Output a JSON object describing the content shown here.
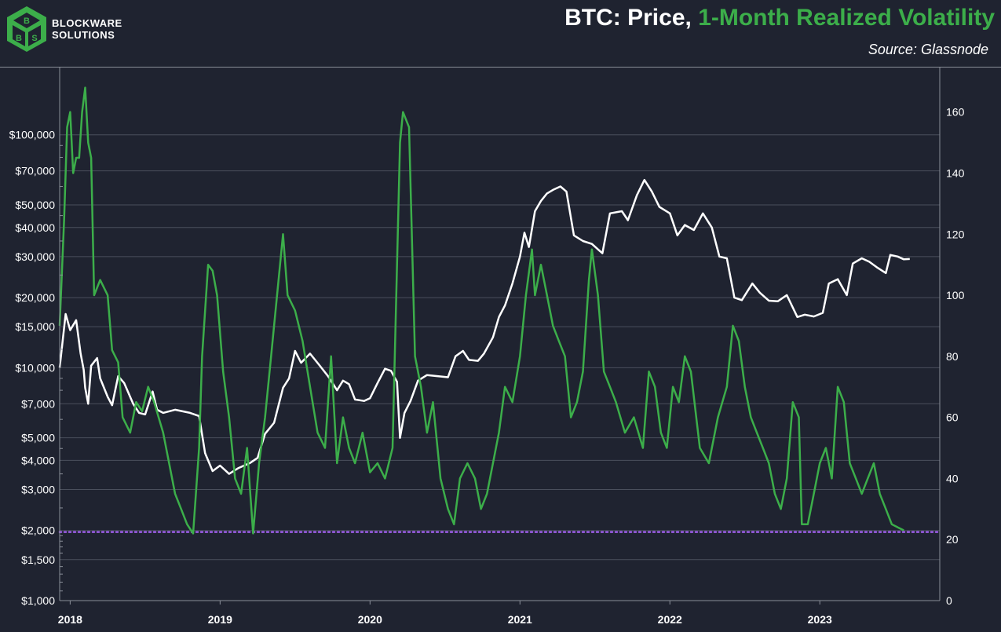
{
  "brand": {
    "line1": "BLOCKWARE",
    "line2": "SOLUTIONS"
  },
  "header": {
    "title_prefix": "BTC: Price, ",
    "title_highlight": "1-Month Realized Volatility",
    "source": "Source: Glassnode"
  },
  "colors": {
    "background": "#1f2330",
    "price": "#ffffff",
    "volatility": "#3cae4a",
    "reference": "#9b5de5",
    "grid": "#4a4f5c"
  },
  "chart_data": {
    "type": "line",
    "xlim": [
      2017.93,
      2023.8
    ],
    "x_ticks": [
      {
        "v": 2018,
        "label": "2018"
      },
      {
        "v": 2019,
        "label": "2019"
      },
      {
        "v": 2020,
        "label": "2020"
      },
      {
        "v": 2021,
        "label": "2021"
      },
      {
        "v": 2022,
        "label": "2022"
      },
      {
        "v": 2023,
        "label": "2023"
      }
    ],
    "left_axis": {
      "scale": "log",
      "ylim": [
        1000,
        180000
      ],
      "ticks": [
        {
          "v": 100000,
          "label": "$100,000"
        },
        {
          "v": 70000,
          "label": "$70,000"
        },
        {
          "v": 50000,
          "label": "$50,000"
        },
        {
          "v": 40000,
          "label": "$40,000"
        },
        {
          "v": 30000,
          "label": "$30,000"
        },
        {
          "v": 20000,
          "label": "$20,000"
        },
        {
          "v": 15000,
          "label": "$15,000"
        },
        {
          "v": 10000,
          "label": "$10,000"
        },
        {
          "v": 7000,
          "label": "$7,000"
        },
        {
          "v": 5000,
          "label": "$5,000"
        },
        {
          "v": 4000,
          "label": "$4,000"
        },
        {
          "v": 3000,
          "label": "$3,000"
        },
        {
          "v": 2000,
          "label": "$2,000"
        },
        {
          "v": 1500,
          "label": "$1,500"
        },
        {
          "v": 1000,
          "label": "$1,000"
        }
      ]
    },
    "right_axis": {
      "scale": "linear",
      "ylim": [
        0,
        172
      ],
      "ticks": [
        {
          "v": 0,
          "label": "0"
        },
        {
          "v": 20,
          "label": "20"
        },
        {
          "v": 40,
          "label": "40"
        },
        {
          "v": 60,
          "label": "60"
        },
        {
          "v": 80,
          "label": "80"
        },
        {
          "v": 100,
          "label": "100"
        },
        {
          "v": 120,
          "label": "120"
        },
        {
          "v": 140,
          "label": "140"
        },
        {
          "v": 160,
          "label": "160"
        }
      ]
    },
    "reference_line": {
      "axis": "left",
      "value": 1970
    },
    "series": [
      {
        "key": "price",
        "axis": "left",
        "points": [
          [
            2017.93,
            10000
          ],
          [
            2017.97,
            17000
          ],
          [
            2018.0,
            14500
          ],
          [
            2018.04,
            16000
          ],
          [
            2018.07,
            11500
          ],
          [
            2018.09,
            9800
          ],
          [
            2018.1,
            8200
          ],
          [
            2018.12,
            7000
          ],
          [
            2018.14,
            10200
          ],
          [
            2018.18,
            11000
          ],
          [
            2018.2,
            9000
          ],
          [
            2018.25,
            7500
          ],
          [
            2018.28,
            6900
          ],
          [
            2018.32,
            9200
          ],
          [
            2018.36,
            8600
          ],
          [
            2018.42,
            7000
          ],
          [
            2018.46,
            6400
          ],
          [
            2018.5,
            6300
          ],
          [
            2018.55,
            7900
          ],
          [
            2018.58,
            6600
          ],
          [
            2018.62,
            6400
          ],
          [
            2018.7,
            6600
          ],
          [
            2018.8,
            6400
          ],
          [
            2018.86,
            6200
          ],
          [
            2018.9,
            4300
          ],
          [
            2018.95,
            3600
          ],
          [
            2019.0,
            3800
          ],
          [
            2019.06,
            3500
          ],
          [
            2019.12,
            3700
          ],
          [
            2019.2,
            3900
          ],
          [
            2019.25,
            4100
          ],
          [
            2019.3,
            5200
          ],
          [
            2019.36,
            5800
          ],
          [
            2019.42,
            8200
          ],
          [
            2019.46,
            9000
          ],
          [
            2019.5,
            11800
          ],
          [
            2019.54,
            10500
          ],
          [
            2019.6,
            11500
          ],
          [
            2019.66,
            10300
          ],
          [
            2019.72,
            9200
          ],
          [
            2019.78,
            8000
          ],
          [
            2019.82,
            8800
          ],
          [
            2019.86,
            8500
          ],
          [
            2019.9,
            7300
          ],
          [
            2019.96,
            7200
          ],
          [
            2020.0,
            7400
          ],
          [
            2020.05,
            8600
          ],
          [
            2020.1,
            9900
          ],
          [
            2020.14,
            9700
          ],
          [
            2020.18,
            8700
          ],
          [
            2020.2,
            5000
          ],
          [
            2020.23,
            6400
          ],
          [
            2020.27,
            7200
          ],
          [
            2020.32,
            8800
          ],
          [
            2020.38,
            9300
          ],
          [
            2020.45,
            9200
          ],
          [
            2020.52,
            9100
          ],
          [
            2020.57,
            11200
          ],
          [
            2020.62,
            11800
          ],
          [
            2020.66,
            10800
          ],
          [
            2020.72,
            10700
          ],
          [
            2020.76,
            11500
          ],
          [
            2020.82,
            13500
          ],
          [
            2020.86,
            16500
          ],
          [
            2020.9,
            18500
          ],
          [
            2020.95,
            23000
          ],
          [
            2021.0,
            30000
          ],
          [
            2021.03,
            38000
          ],
          [
            2021.06,
            33000
          ],
          [
            2021.1,
            47000
          ],
          [
            2021.14,
            52000
          ],
          [
            2021.18,
            56000
          ],
          [
            2021.22,
            58000
          ],
          [
            2021.27,
            60000
          ],
          [
            2021.31,
            57000
          ],
          [
            2021.36,
            37000
          ],
          [
            2021.42,
            35000
          ],
          [
            2021.48,
            34000
          ],
          [
            2021.55,
            31000
          ],
          [
            2021.6,
            46000
          ],
          [
            2021.68,
            47000
          ],
          [
            2021.72,
            43000
          ],
          [
            2021.78,
            55000
          ],
          [
            2021.83,
            64000
          ],
          [
            2021.88,
            57000
          ],
          [
            2021.93,
            49000
          ],
          [
            2022.0,
            46000
          ],
          [
            2022.05,
            37000
          ],
          [
            2022.1,
            41000
          ],
          [
            2022.16,
            39000
          ],
          [
            2022.22,
            46000
          ],
          [
            2022.28,
            40000
          ],
          [
            2022.33,
            30000
          ],
          [
            2022.38,
            29500
          ],
          [
            2022.43,
            20000
          ],
          [
            2022.48,
            19500
          ],
          [
            2022.55,
            23000
          ],
          [
            2022.6,
            21000
          ],
          [
            2022.66,
            19400
          ],
          [
            2022.72,
            19300
          ],
          [
            2022.78,
            20500
          ],
          [
            2022.85,
            16500
          ],
          [
            2022.9,
            16900
          ],
          [
            2022.96,
            16600
          ],
          [
            2023.02,
            17200
          ],
          [
            2023.06,
            23000
          ],
          [
            2023.12,
            24000
          ],
          [
            2023.18,
            20500
          ],
          [
            2023.22,
            28000
          ],
          [
            2023.28,
            29500
          ],
          [
            2023.33,
            28500
          ],
          [
            2023.38,
            27000
          ],
          [
            2023.44,
            25500
          ],
          [
            2023.47,
            30500
          ],
          [
            2023.52,
            30000
          ],
          [
            2023.56,
            29200
          ],
          [
            2023.6,
            29300
          ]
        ]
      },
      {
        "key": "volatility",
        "axis": "right",
        "points": [
          [
            2017.93,
            90
          ],
          [
            2017.96,
            125
          ],
          [
            2017.98,
            155
          ],
          [
            2018.0,
            160
          ],
          [
            2018.02,
            140
          ],
          [
            2018.04,
            145
          ],
          [
            2018.06,
            145
          ],
          [
            2018.08,
            160
          ],
          [
            2018.1,
            168
          ],
          [
            2018.12,
            150
          ],
          [
            2018.14,
            145
          ],
          [
            2018.16,
            100
          ],
          [
            2018.2,
            105
          ],
          [
            2018.25,
            100
          ],
          [
            2018.28,
            82
          ],
          [
            2018.32,
            78
          ],
          [
            2018.35,
            60
          ],
          [
            2018.4,
            55
          ],
          [
            2018.44,
            65
          ],
          [
            2018.48,
            62
          ],
          [
            2018.52,
            70
          ],
          [
            2018.56,
            65
          ],
          [
            2018.62,
            55
          ],
          [
            2018.66,
            45
          ],
          [
            2018.7,
            35
          ],
          [
            2018.74,
            30
          ],
          [
            2018.78,
            25
          ],
          [
            2018.82,
            22
          ],
          [
            2018.86,
            50
          ],
          [
            2018.88,
            80
          ],
          [
            2018.92,
            110
          ],
          [
            2018.95,
            108
          ],
          [
            2018.98,
            100
          ],
          [
            2019.02,
            75
          ],
          [
            2019.06,
            60
          ],
          [
            2019.1,
            40
          ],
          [
            2019.14,
            35
          ],
          [
            2019.18,
            50
          ],
          [
            2019.22,
            22
          ],
          [
            2019.26,
            45
          ],
          [
            2019.3,
            60
          ],
          [
            2019.34,
            80
          ],
          [
            2019.38,
            100
          ],
          [
            2019.42,
            120
          ],
          [
            2019.45,
            100
          ],
          [
            2019.5,
            95
          ],
          [
            2019.55,
            85
          ],
          [
            2019.6,
            70
          ],
          [
            2019.65,
            55
          ],
          [
            2019.7,
            50
          ],
          [
            2019.74,
            80
          ],
          [
            2019.78,
            45
          ],
          [
            2019.82,
            60
          ],
          [
            2019.86,
            50
          ],
          [
            2019.9,
            45
          ],
          [
            2019.95,
            55
          ],
          [
            2020.0,
            42
          ],
          [
            2020.05,
            45
          ],
          [
            2020.1,
            40
          ],
          [
            2020.15,
            50
          ],
          [
            2020.2,
            150
          ],
          [
            2020.22,
            160
          ],
          [
            2020.26,
            155
          ],
          [
            2020.3,
            80
          ],
          [
            2020.34,
            70
          ],
          [
            2020.38,
            55
          ],
          [
            2020.42,
            65
          ],
          [
            2020.47,
            40
          ],
          [
            2020.52,
            30
          ],
          [
            2020.56,
            25
          ],
          [
            2020.6,
            40
          ],
          [
            2020.65,
            45
          ],
          [
            2020.7,
            40
          ],
          [
            2020.74,
            30
          ],
          [
            2020.78,
            35
          ],
          [
            2020.82,
            45
          ],
          [
            2020.86,
            55
          ],
          [
            2020.9,
            70
          ],
          [
            2020.95,
            65
          ],
          [
            2021.0,
            80
          ],
          [
            2021.04,
            100
          ],
          [
            2021.08,
            115
          ],
          [
            2021.1,
            100
          ],
          [
            2021.14,
            110
          ],
          [
            2021.18,
            100
          ],
          [
            2021.22,
            90
          ],
          [
            2021.26,
            85
          ],
          [
            2021.3,
            80
          ],
          [
            2021.34,
            60
          ],
          [
            2021.38,
            65
          ],
          [
            2021.42,
            75
          ],
          [
            2021.46,
            105
          ],
          [
            2021.48,
            115
          ],
          [
            2021.52,
            100
          ],
          [
            2021.56,
            75
          ],
          [
            2021.6,
            70
          ],
          [
            2021.64,
            65
          ],
          [
            2021.7,
            55
          ],
          [
            2021.76,
            60
          ],
          [
            2021.82,
            50
          ],
          [
            2021.86,
            75
          ],
          [
            2021.9,
            70
          ],
          [
            2021.94,
            55
          ],
          [
            2021.98,
            50
          ],
          [
            2022.02,
            70
          ],
          [
            2022.06,
            65
          ],
          [
            2022.1,
            80
          ],
          [
            2022.14,
            75
          ],
          [
            2022.2,
            50
          ],
          [
            2022.26,
            45
          ],
          [
            2022.32,
            60
          ],
          [
            2022.38,
            70
          ],
          [
            2022.42,
            90
          ],
          [
            2022.46,
            85
          ],
          [
            2022.5,
            70
          ],
          [
            2022.54,
            60
          ],
          [
            2022.58,
            55
          ],
          [
            2022.62,
            50
          ],
          [
            2022.66,
            45
          ],
          [
            2022.7,
            35
          ],
          [
            2022.74,
            30
          ],
          [
            2022.78,
            40
          ],
          [
            2022.82,
            65
          ],
          [
            2022.86,
            60
          ],
          [
            2022.88,
            25
          ],
          [
            2022.92,
            25
          ],
          [
            2022.96,
            35
          ],
          [
            2023.0,
            45
          ],
          [
            2023.04,
            50
          ],
          [
            2023.08,
            40
          ],
          [
            2023.12,
            70
          ],
          [
            2023.16,
            65
          ],
          [
            2023.2,
            45
          ],
          [
            2023.24,
            40
          ],
          [
            2023.28,
            35
          ],
          [
            2023.32,
            40
          ],
          [
            2023.36,
            45
          ],
          [
            2023.4,
            35
          ],
          [
            2023.44,
            30
          ],
          [
            2023.48,
            25
          ],
          [
            2023.52,
            24
          ],
          [
            2023.56,
            23
          ]
        ]
      }
    ]
  }
}
